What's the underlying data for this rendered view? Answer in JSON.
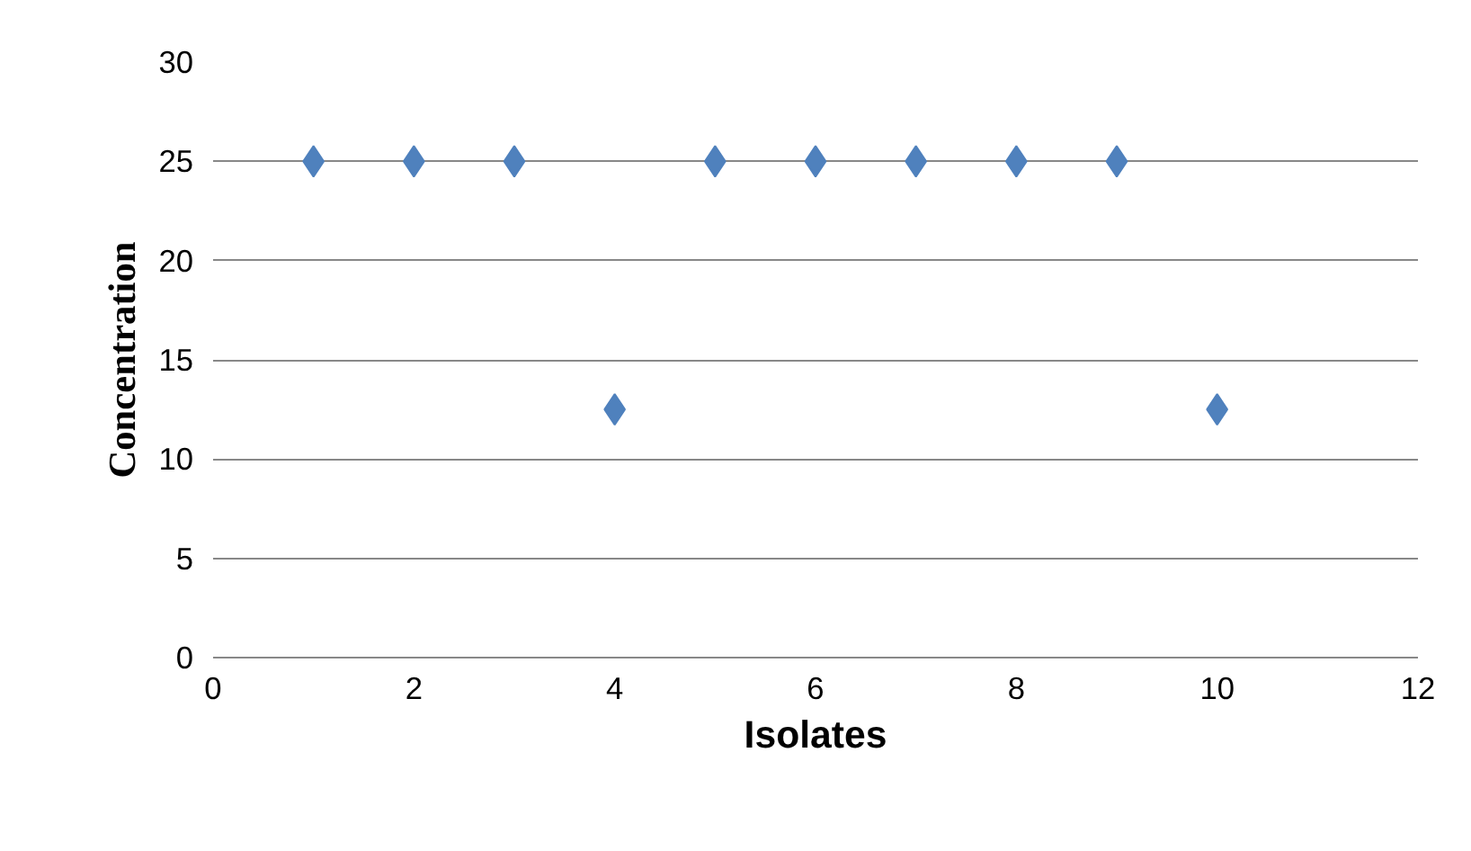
{
  "chart_data": {
    "type": "scatter",
    "xlabel": "Isolates",
    "ylabel": "Concentration",
    "x": [
      1,
      2,
      3,
      4,
      5,
      6,
      7,
      8,
      9,
      10
    ],
    "series": [
      {
        "color": "#4f81bd",
        "values": [
          25,
          25,
          25,
          12.5,
          25,
          25,
          25,
          25,
          25,
          12.5
        ]
      }
    ],
    "xlim": [
      0,
      12
    ],
    "xticks": [
      0,
      2,
      4,
      6,
      8,
      10,
      12
    ],
    "ylim": [
      0,
      30
    ],
    "yticks": [
      0,
      5,
      10,
      15,
      20,
      25,
      30
    ],
    "grid": "y",
    "marker": "diamond"
  }
}
